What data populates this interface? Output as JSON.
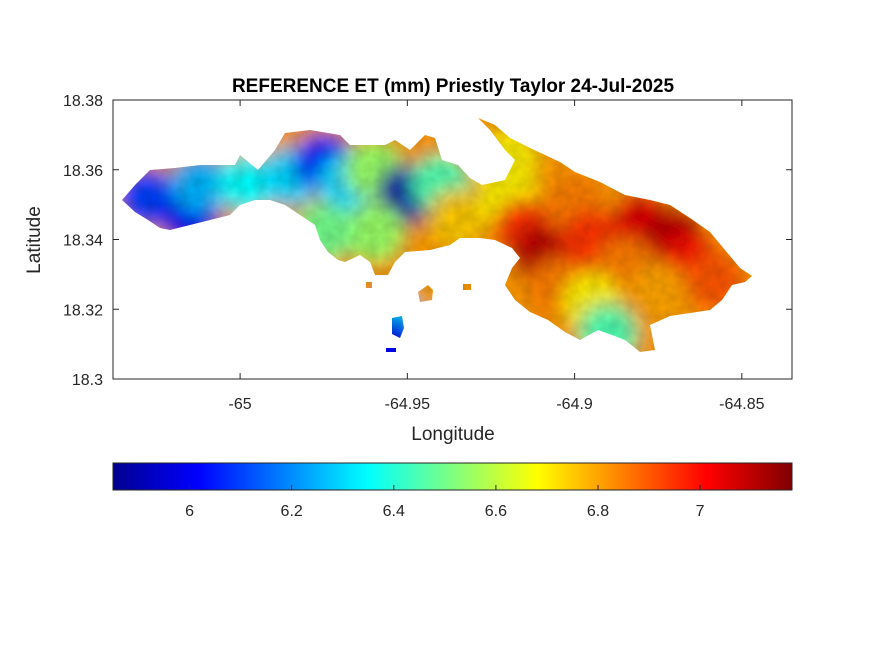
{
  "chart_data": {
    "type": "heatmap",
    "title": "REFERENCE ET (mm) Priestly Taylor 24-Jul-2025",
    "xlabel": "Longitude",
    "ylabel": "Latitude",
    "xlim": [
      -65.038,
      -64.835
    ],
    "ylim": [
      18.3,
      18.38
    ],
    "x_ticks": [
      -65,
      -64.95,
      -64.9,
      -64.85
    ],
    "x_tick_labels": [
      "-65",
      "-64.95",
      "-64.9",
      "-64.85"
    ],
    "y_ticks": [
      18.3,
      18.32,
      18.34,
      18.36,
      18.38
    ],
    "y_tick_labels": [
      "18.3",
      "18.32",
      "18.34",
      "18.36",
      "18.38"
    ],
    "colorbar": {
      "colormap": "jet",
      "orientation": "horizontal",
      "placement": "bottom",
      "clim": [
        5.85,
        7.18
      ],
      "ticks": [
        6,
        6.2,
        6.4,
        6.6,
        6.8,
        7
      ],
      "tick_labels": [
        "6",
        "6.2",
        "6.4",
        "6.6",
        "6.8",
        "7"
      ]
    },
    "grid": false,
    "region_samples": [
      {
        "lon": -65.028,
        "lat": 18.352,
        "value": 6.1
      },
      {
        "lon": -65.015,
        "lat": 18.347,
        "value": 6.0
      },
      {
        "lon": -65.012,
        "lat": 18.356,
        "value": 6.25
      },
      {
        "lon": -64.998,
        "lat": 18.356,
        "value": 6.35
      },
      {
        "lon": -64.985,
        "lat": 18.358,
        "value": 6.3
      },
      {
        "lon": -64.975,
        "lat": 18.362,
        "value": 6.05
      },
      {
        "lon": -64.968,
        "lat": 18.356,
        "value": 6.3
      },
      {
        "lon": -64.96,
        "lat": 18.36,
        "value": 6.55
      },
      {
        "lon": -64.95,
        "lat": 18.353,
        "value": 5.9
      },
      {
        "lon": -64.96,
        "lat": 18.342,
        "value": 6.55
      },
      {
        "lon": -64.975,
        "lat": 18.342,
        "value": 6.5
      },
      {
        "lon": -64.94,
        "lat": 18.356,
        "value": 6.45
      },
      {
        "lon": -64.935,
        "lat": 18.346,
        "value": 6.75
      },
      {
        "lon": -64.92,
        "lat": 18.352,
        "value": 6.7
      },
      {
        "lon": -64.915,
        "lat": 18.343,
        "value": 6.95
      },
      {
        "lon": -64.91,
        "lat": 18.336,
        "value": 7.1
      },
      {
        "lon": -64.9,
        "lat": 18.35,
        "value": 6.85
      },
      {
        "lon": -64.895,
        "lat": 18.34,
        "value": 6.95
      },
      {
        "lon": -64.88,
        "lat": 18.345,
        "value": 7.05
      },
      {
        "lon": -64.87,
        "lat": 18.341,
        "value": 7.1
      },
      {
        "lon": -64.865,
        "lat": 18.333,
        "value": 7.0
      },
      {
        "lon": -64.885,
        "lat": 18.332,
        "value": 6.85
      },
      {
        "lon": -64.905,
        "lat": 18.326,
        "value": 6.85
      },
      {
        "lon": -64.895,
        "lat": 18.322,
        "value": 6.7
      },
      {
        "lon": -64.875,
        "lat": 18.325,
        "value": 6.8
      },
      {
        "lon": -64.858,
        "lat": 18.328,
        "value": 6.9
      },
      {
        "lon": -64.89,
        "lat": 18.313,
        "value": 6.45
      },
      {
        "lon": -64.948,
        "lat": 18.325,
        "value": 6.8
      },
      {
        "lon": -64.954,
        "lat": 18.316,
        "value": 6.3
      },
      {
        "lon": -64.955,
        "lat": 18.309,
        "value": 6.0
      },
      {
        "lon": -64.92,
        "lat": 18.363,
        "value": 6.7
      }
    ]
  }
}
